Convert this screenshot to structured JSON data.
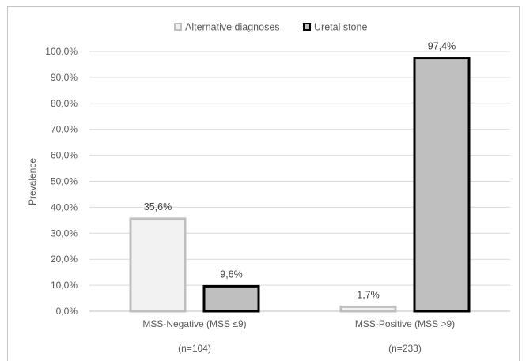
{
  "chart_data": {
    "type": "bar",
    "ylabel": "Prevalence",
    "ylim": [
      0,
      100
    ],
    "ytick_step": 10,
    "y_tick_labels": [
      "0,0%",
      "10,0%",
      "20,0%",
      "30,0%",
      "40,0%",
      "50,0%",
      "60,0%",
      "70,0%",
      "80,0%",
      "90,0%",
      "100,0%"
    ],
    "categories": [
      "MSS-Negative (MSS ≤9)",
      "MSS-Positive (MSS >9)"
    ],
    "category_sublabels": [
      "(n=104)",
      "(n=233)"
    ],
    "series": [
      {
        "name": "Alternative diagnoses",
        "values": [
          35.6,
          1.7
        ],
        "labels": [
          "35,6%",
          "1,7%"
        ],
        "fill": "#f2f2f2",
        "stroke": "#bfbfbf"
      },
      {
        "name": "Uretal stone",
        "values": [
          9.6,
          97.4
        ],
        "labels": [
          "9,6%",
          "97,4%"
        ],
        "fill": "#bfbfbf",
        "stroke": "#000000"
      }
    ],
    "legend_position": "top",
    "grid": true,
    "gridline_color": "#d9d9d9"
  }
}
